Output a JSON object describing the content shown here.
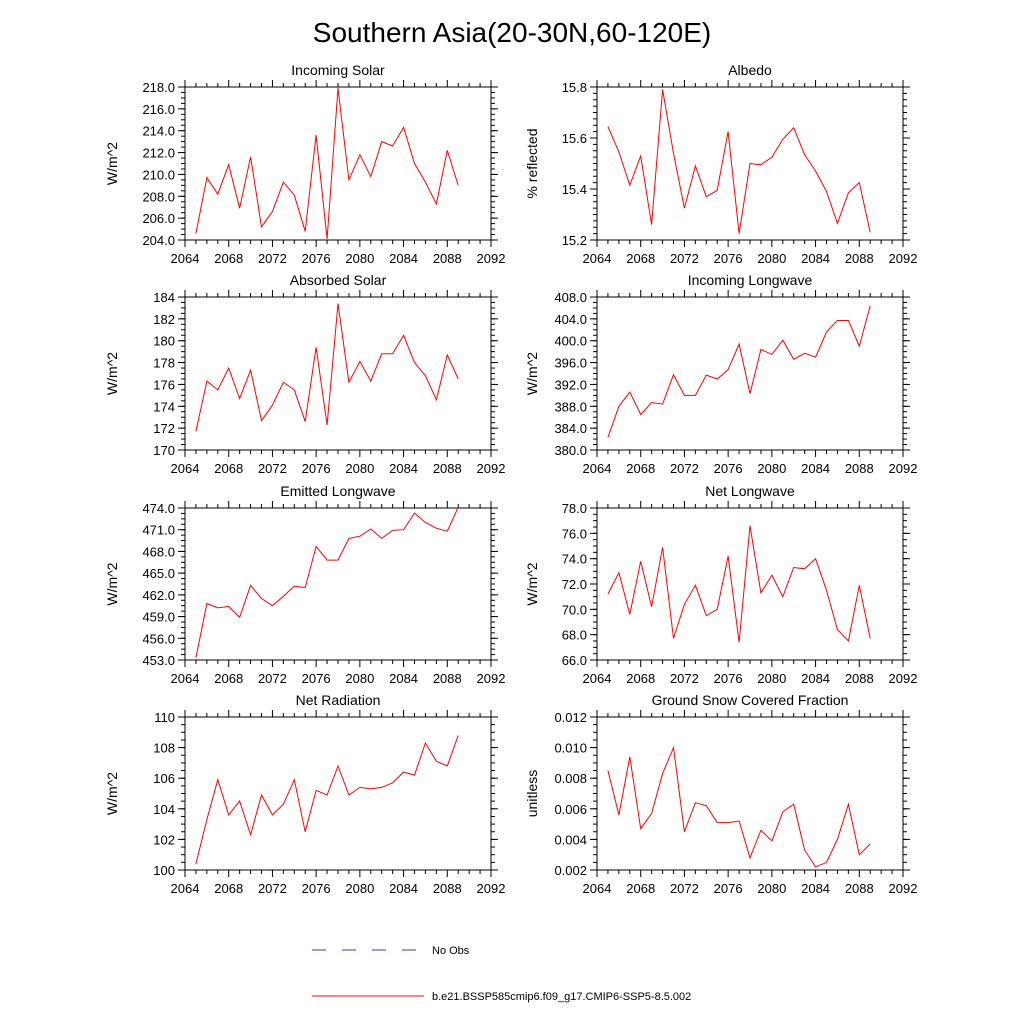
{
  "figure": {
    "title": "Southern Asia(20-30N,60-120E)"
  },
  "legend": {
    "obs_label": "No Obs",
    "obs_color": "#3b3bb3",
    "model_label": "b.e21.BSSP585cmip6.f09_g17.CMIP6-SSP5-8.5.002",
    "model_color": "#ff0000"
  },
  "chart_data": [
    {
      "type": "line",
      "title": "Incoming Solar",
      "ylabel": "W/m^2",
      "xlim": [
        2064,
        2092
      ],
      "xticks": [
        2064,
        2068,
        2072,
        2076,
        2080,
        2084,
        2088,
        2092
      ],
      "ylim": [
        204,
        218
      ],
      "yticks": [
        "204.0",
        "206.0",
        "208.0",
        "210.0",
        "212.0",
        "214.0",
        "216.0",
        "218.0"
      ],
      "yminor": 0.5,
      "x": [
        2065,
        2066,
        2067,
        2068,
        2069,
        2070,
        2071,
        2072,
        2073,
        2074,
        2075,
        2076,
        2077,
        2078,
        2079,
        2080,
        2081,
        2082,
        2083,
        2084,
        2085,
        2086,
        2087,
        2088,
        2089
      ],
      "series": [
        {
          "values": [
            204.6,
            209.7,
            208.2,
            210.9,
            206.9,
            211.6,
            205.2,
            206.6,
            209.3,
            208.1,
            204.8,
            213.6,
            204.1,
            217.9,
            209.5,
            211.8,
            209.8,
            213.0,
            212.6,
            214.3,
            211.0,
            209.3,
            207.3,
            212.2,
            209.0
          ]
        }
      ]
    },
    {
      "type": "line",
      "title": "Albedo",
      "ylabel": "% reflected",
      "xlim": [
        2064,
        2092
      ],
      "xticks": [
        2064,
        2068,
        2072,
        2076,
        2080,
        2084,
        2088,
        2092
      ],
      "ylim": [
        15.2,
        15.8
      ],
      "yticks": [
        "15.2",
        "15.4",
        "15.6",
        "15.8"
      ],
      "yminor": 0.025,
      "x": [
        2065,
        2066,
        2067,
        2068,
        2069,
        2070,
        2071,
        2072,
        2073,
        2074,
        2075,
        2076,
        2077,
        2078,
        2079,
        2080,
        2081,
        2082,
        2083,
        2084,
        2085,
        2086,
        2087,
        2088,
        2089
      ],
      "series": [
        {
          "values": [
            15.645,
            15.545,
            15.415,
            15.53,
            15.26,
            15.79,
            15.54,
            15.325,
            15.49,
            15.37,
            15.395,
            15.625,
            15.225,
            15.5,
            15.495,
            15.525,
            15.595,
            15.64,
            15.535,
            15.47,
            15.39,
            15.265,
            15.385,
            15.425,
            15.23
          ]
        }
      ]
    },
    {
      "type": "line",
      "title": "Absorbed Solar",
      "ylabel": "W/m^2",
      "xlim": [
        2064,
        2092
      ],
      "xticks": [
        2064,
        2068,
        2072,
        2076,
        2080,
        2084,
        2088,
        2092
      ],
      "ylim": [
        170,
        184
      ],
      "yticks": [
        "170",
        "172",
        "174",
        "176",
        "178",
        "180",
        "182",
        "184"
      ],
      "yminor": 0.5,
      "x": [
        2065,
        2066,
        2067,
        2068,
        2069,
        2070,
        2071,
        2072,
        2073,
        2074,
        2075,
        2076,
        2077,
        2078,
        2079,
        2080,
        2081,
        2082,
        2083,
        2084,
        2085,
        2086,
        2087,
        2088,
        2089
      ],
      "series": [
        {
          "values": [
            171.7,
            176.3,
            175.5,
            177.5,
            174.7,
            177.3,
            172.7,
            174.1,
            176.2,
            175.5,
            172.6,
            179.4,
            172.3,
            183.4,
            176.2,
            178.1,
            176.3,
            178.8,
            178.8,
            180.5,
            178.0,
            176.8,
            174.6,
            178.7,
            176.5
          ]
        }
      ]
    },
    {
      "type": "line",
      "title": "Incoming Longwave",
      "ylabel": "W/m^2",
      "xlim": [
        2064,
        2092
      ],
      "xticks": [
        2064,
        2068,
        2072,
        2076,
        2080,
        2084,
        2088,
        2092
      ],
      "ylim": [
        380,
        408
      ],
      "yticks": [
        "380.0",
        "384.0",
        "388.0",
        "392.0",
        "396.0",
        "400.0",
        "404.0",
        "408.0"
      ],
      "yminor": 1,
      "x": [
        2065,
        2066,
        2067,
        2068,
        2069,
        2070,
        2071,
        2072,
        2073,
        2074,
        2075,
        2076,
        2077,
        2078,
        2079,
        2080,
        2081,
        2082,
        2083,
        2084,
        2085,
        2086,
        2087,
        2088,
        2089
      ],
      "series": [
        {
          "values": [
            382.3,
            388.0,
            390.6,
            386.5,
            388.7,
            388.4,
            393.8,
            390.0,
            390.0,
            393.7,
            393.0,
            394.7,
            399.4,
            390.3,
            398.4,
            397.5,
            400.1,
            396.6,
            397.7,
            397.0,
            401.6,
            403.7,
            403.7,
            399.0,
            406.4
          ]
        }
      ]
    },
    {
      "type": "line",
      "title": "Emitted Longwave",
      "ylabel": "W/m^2",
      "xlim": [
        2064,
        2092
      ],
      "xticks": [
        2064,
        2068,
        2072,
        2076,
        2080,
        2084,
        2088,
        2092
      ],
      "ylim": [
        453,
        474
      ],
      "yticks": [
        "453.0",
        "456.0",
        "459.0",
        "462.0",
        "465.0",
        "468.0",
        "471.0",
        "474.0"
      ],
      "yminor": 0.75,
      "x": [
        2065,
        2066,
        2067,
        2068,
        2069,
        2070,
        2071,
        2072,
        2073,
        2074,
        2075,
        2076,
        2077,
        2078,
        2079,
        2080,
        2081,
        2082,
        2083,
        2084,
        2085,
        2086,
        2087,
        2088,
        2089
      ],
      "series": [
        {
          "values": [
            453.3,
            460.8,
            460.2,
            460.4,
            458.9,
            463.3,
            461.5,
            460.5,
            461.8,
            463.2,
            463.0,
            468.7,
            466.8,
            466.8,
            469.8,
            470.1,
            471.1,
            469.8,
            470.9,
            471.0,
            473.3,
            472.0,
            471.2,
            470.8,
            474.1
          ]
        }
      ]
    },
    {
      "type": "line",
      "title": "Net Longwave",
      "ylabel": "W/m^2",
      "xlim": [
        2064,
        2092
      ],
      "xticks": [
        2064,
        2068,
        2072,
        2076,
        2080,
        2084,
        2088,
        2092
      ],
      "ylim": [
        66,
        78
      ],
      "yticks": [
        "66.0",
        "68.0",
        "70.0",
        "72.0",
        "74.0",
        "76.0",
        "78.0"
      ],
      "yminor": 0.5,
      "x": [
        2065,
        2066,
        2067,
        2068,
        2069,
        2070,
        2071,
        2072,
        2073,
        2074,
        2075,
        2076,
        2077,
        2078,
        2079,
        2080,
        2081,
        2082,
        2083,
        2084,
        2085,
        2086,
        2087,
        2088,
        2089
      ],
      "series": [
        {
          "values": [
            71.2,
            72.9,
            69.6,
            73.8,
            70.2,
            74.9,
            67.7,
            70.4,
            71.9,
            69.5,
            70.0,
            74.2,
            67.4,
            76.6,
            71.3,
            72.7,
            71.0,
            73.3,
            73.2,
            74.0,
            71.5,
            68.4,
            67.5,
            71.9,
            67.7
          ]
        }
      ]
    },
    {
      "type": "line",
      "title": "Net Radiation",
      "ylabel": "W/m^2",
      "xlim": [
        2064,
        2092
      ],
      "xticks": [
        2064,
        2068,
        2072,
        2076,
        2080,
        2084,
        2088,
        2092
      ],
      "ylim": [
        100,
        110
      ],
      "yticks": [
        "100",
        "102",
        "104",
        "106",
        "108",
        "110"
      ],
      "yminor": 0.5,
      "x": [
        2065,
        2066,
        2067,
        2068,
        2069,
        2070,
        2071,
        2072,
        2073,
        2074,
        2075,
        2076,
        2077,
        2078,
        2079,
        2080,
        2081,
        2082,
        2083,
        2084,
        2085,
        2086,
        2087,
        2088,
        2089
      ],
      "series": [
        {
          "values": [
            100.4,
            103.3,
            105.9,
            103.6,
            104.5,
            102.3,
            104.9,
            103.6,
            104.3,
            105.9,
            102.5,
            105.2,
            104.9,
            106.8,
            104.9,
            105.4,
            105.3,
            105.4,
            105.7,
            106.4,
            106.2,
            108.3,
            107.1,
            106.8,
            108.8
          ]
        }
      ]
    },
    {
      "type": "line",
      "title": "Ground Snow Covered Fraction",
      "ylabel": "unitless",
      "xlim": [
        2064,
        2092
      ],
      "xticks": [
        2064,
        2068,
        2072,
        2076,
        2080,
        2084,
        2088,
        2092
      ],
      "ylim": [
        0.002,
        0.012
      ],
      "yticks": [
        "0.002",
        "0.004",
        "0.006",
        "0.008",
        "0.010",
        "0.012"
      ],
      "yminor": 0.0005,
      "x": [
        2065,
        2066,
        2067,
        2068,
        2069,
        2070,
        2071,
        2072,
        2073,
        2074,
        2075,
        2076,
        2077,
        2078,
        2079,
        2080,
        2081,
        2082,
        2083,
        2084,
        2085,
        2086,
        2087,
        2088,
        2089
      ],
      "series": [
        {
          "values": [
            0.0085,
            0.0056,
            0.0094,
            0.0047,
            0.0057,
            0.0083,
            0.01,
            0.0045,
            0.0064,
            0.0062,
            0.0051,
            0.0051,
            0.0052,
            0.0028,
            0.0046,
            0.0039,
            0.0058,
            0.0063,
            0.0033,
            0.0022,
            0.0025,
            0.004,
            0.0063,
            0.003,
            0.0037
          ]
        }
      ]
    }
  ]
}
